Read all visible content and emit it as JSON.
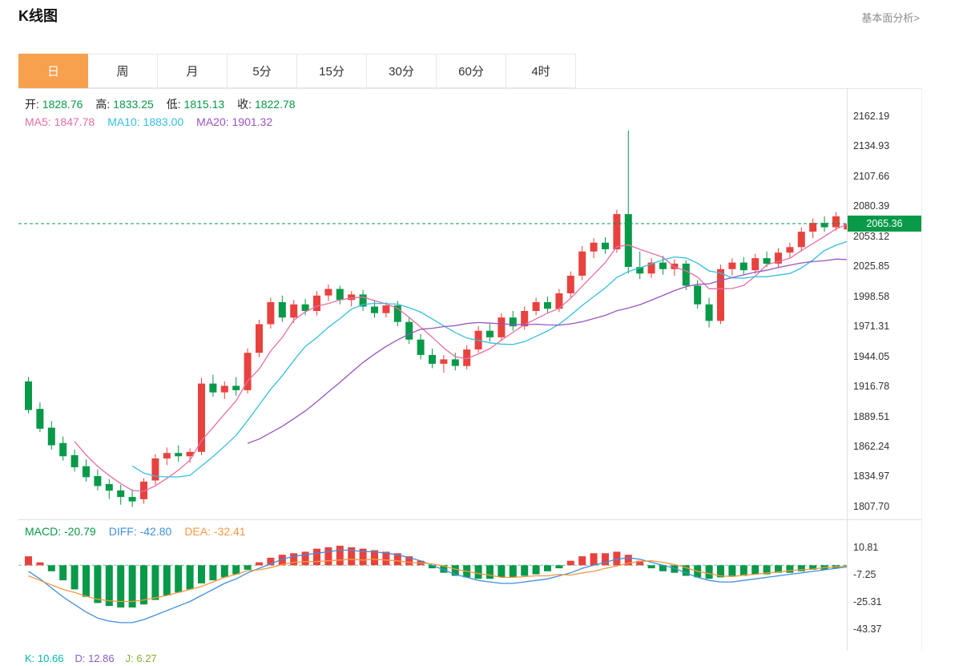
{
  "page": {
    "title": "K线图",
    "link": "基本面分析>"
  },
  "tabs": [
    {
      "id": "day",
      "label": "日",
      "active": true
    },
    {
      "id": "week",
      "label": "周",
      "active": false
    },
    {
      "id": "month",
      "label": "月",
      "active": false
    },
    {
      "id": "m5",
      "label": "5分",
      "active": false
    },
    {
      "id": "m15",
      "label": "15分",
      "active": false
    },
    {
      "id": "m30",
      "label": "30分",
      "active": false
    },
    {
      "id": "m60",
      "label": "60分",
      "active": false
    },
    {
      "id": "h4",
      "label": "4时",
      "active": false
    }
  ],
  "colors": {
    "up": "#e8423f",
    "down": "#089949",
    "accent": "#f7a04e",
    "ma5": "#e56fa4",
    "ma10": "#35bfdf",
    "ma20": "#9a55c0",
    "diff": "#3f8fdd",
    "dea": "#f6973f",
    "kdj_k": "#00b6b6",
    "kdj_d": "#8e5bc8",
    "kdj_j": "#7eb32f",
    "text": "#222",
    "grid": "#e0e0e0"
  },
  "ohlc_legend": [
    {
      "label": "开:",
      "value": "1828.76",
      "label_color": "#222",
      "value_color": "#089949"
    },
    {
      "label": "高:",
      "value": "1833.25",
      "label_color": "#222",
      "value_color": "#089949"
    },
    {
      "label": "低:",
      "value": "1815.13",
      "label_color": "#222",
      "value_color": "#089949"
    },
    {
      "label": "收:",
      "value": "1822.78",
      "label_color": "#222",
      "value_color": "#089949"
    }
  ],
  "ma_legend": [
    {
      "label": "MA5:",
      "value": "1847.78",
      "color": "#e56fa4"
    },
    {
      "label": "MA10:",
      "value": "1883.00",
      "color": "#35bfdf"
    },
    {
      "label": "MA20:",
      "value": "1901.32",
      "color": "#9a55c0"
    }
  ],
  "macd_legend": [
    {
      "label": "MACD:",
      "value": "-20.79",
      "color": "#089949"
    },
    {
      "label": "DIFF:",
      "value": "-42.80",
      "color": "#3f8fdd"
    },
    {
      "label": "DEA:",
      "value": "-32.41",
      "color": "#f6973f"
    }
  ],
  "kdj_legend": [
    {
      "label": "K:",
      "value": "10.66",
      "color": "#00b6b6"
    },
    {
      "label": "D:",
      "value": "12.86",
      "color": "#8e5bc8"
    },
    {
      "label": "J:",
      "value": "6.27",
      "color": "#7eb32f"
    }
  ],
  "price_axis": {
    "labels": [
      "2162.19",
      "2134.93",
      "2107.66",
      "2080.39",
      "2053.12",
      "2025.85",
      "1998.58",
      "1971.31",
      "1944.05",
      "1916.78",
      "1889.51",
      "1862.24",
      "1834.97",
      "1807.70"
    ],
    "last_price": "2065.36"
  },
  "macd_axis": {
    "labels": [
      "10.81",
      "-7.25",
      "-25.31",
      "-43.37"
    ]
  },
  "chart_data": {
    "type": "candlestick",
    "title": "K线图 (daily)",
    "legend_position": "top-left",
    "grid": false,
    "y_axis": {
      "max": 2162.19,
      "min": 1807.7,
      "tick_step": 27.27
    },
    "last_price": 2065.36,
    "candles_ohlc": [
      [
        1922,
        1926,
        1893,
        1896
      ],
      [
        1897,
        1903,
        1876,
        1879
      ],
      [
        1880,
        1886,
        1860,
        1864
      ],
      [
        1866,
        1872,
        1850,
        1854
      ],
      [
        1855,
        1860,
        1840,
        1844
      ],
      [
        1845,
        1851,
        1831,
        1835
      ],
      [
        1836,
        1842,
        1823,
        1827
      ],
      [
        1828.76,
        1833.25,
        1815.13,
        1822.78
      ],
      [
        1823,
        1828,
        1810,
        1817
      ],
      [
        1817,
        1824,
        1808,
        1813
      ],
      [
        1815,
        1834,
        1811,
        1831
      ],
      [
        1832,
        1856,
        1828,
        1852
      ],
      [
        1852,
        1862,
        1846,
        1857
      ],
      [
        1857,
        1864,
        1849,
        1854
      ],
      [
        1854,
        1861,
        1848,
        1858
      ],
      [
        1858,
        1925,
        1855,
        1920
      ],
      [
        1920,
        1928,
        1908,
        1912
      ],
      [
        1912,
        1922,
        1906,
        1918
      ],
      [
        1918,
        1926,
        1909,
        1914
      ],
      [
        1914,
        1952,
        1911,
        1948
      ],
      [
        1948,
        1978,
        1944,
        1974
      ],
      [
        1974,
        1998,
        1970,
        1994
      ],
      [
        1994,
        2000,
        1976,
        1980
      ],
      [
        1980,
        1996,
        1975,
        1992
      ],
      [
        1992,
        1997,
        1982,
        1986
      ],
      [
        1986,
        2004,
        1982,
        2000
      ],
      [
        2000,
        2010,
        1995,
        2006
      ],
      [
        2006,
        2009,
        1992,
        1996
      ],
      [
        1996,
        2004,
        1990,
        2001
      ],
      [
        2001,
        2005,
        1986,
        1990
      ],
      [
        1990,
        1996,
        1980,
        1984
      ],
      [
        1984,
        1994,
        1980,
        1991
      ],
      [
        1991,
        1995,
        1972,
        1976
      ],
      [
        1976,
        1980,
        1956,
        1960
      ],
      [
        1960,
        1965,
        1942,
        1946
      ],
      [
        1946,
        1952,
        1934,
        1938
      ],
      [
        1938,
        1946,
        1930,
        1942
      ],
      [
        1942,
        1948,
        1932,
        1936
      ],
      [
        1936,
        1955,
        1933,
        1951
      ],
      [
        1951,
        1972,
        1948,
        1968
      ],
      [
        1968,
        1974,
        1958,
        1962
      ],
      [
        1962,
        1984,
        1959,
        1980
      ],
      [
        1980,
        1986,
        1968,
        1972
      ],
      [
        1972,
        1990,
        1969,
        1986
      ],
      [
        1986,
        1998,
        1982,
        1994
      ],
      [
        1994,
        1999,
        1984,
        1988
      ],
      [
        1988,
        2006,
        1985,
        2002
      ],
      [
        2002,
        2022,
        1998,
        2018
      ],
      [
        2018,
        2045,
        2014,
        2040
      ],
      [
        2040,
        2052,
        2034,
        2048
      ],
      [
        2048,
        2053,
        2038,
        2042
      ],
      [
        2042,
        2078,
        2039,
        2074
      ],
      [
        2074,
        2150,
        2020,
        2026
      ],
      [
        2026,
        2040,
        2015,
        2020
      ],
      [
        2020,
        2034,
        2016,
        2030
      ],
      [
        2030,
        2036,
        2019,
        2024
      ],
      [
        2024,
        2033,
        2018,
        2029
      ],
      [
        2029,
        2032,
        2005,
        2009
      ],
      [
        2009,
        2014,
        1988,
        1992
      ],
      [
        1992,
        1998,
        1971,
        1977
      ],
      [
        1977,
        2028,
        1974,
        2024
      ],
      [
        2024,
        2034,
        2018,
        2030
      ],
      [
        2030,
        2035,
        2019,
        2023
      ],
      [
        2023,
        2038,
        2020,
        2034
      ],
      [
        2034,
        2040,
        2026,
        2029
      ],
      [
        2029,
        2043,
        2025,
        2039
      ],
      [
        2039,
        2048,
        2034,
        2044
      ],
      [
        2044,
        2062,
        2040,
        2058
      ],
      [
        2058,
        2070,
        2052,
        2066
      ],
      [
        2066,
        2072,
        2058,
        2062
      ],
      [
        2062,
        2076,
        2059,
        2072
      ],
      [
        2060,
        2068,
        2056,
        2065.36
      ]
    ],
    "ma_periods": [
      5,
      10,
      20
    ],
    "macd": {
      "axis": [
        10.81,
        -7.25,
        -25.31,
        -43.37
      ],
      "hist": [
        6,
        2,
        -4,
        -10,
        -16,
        -21,
        -25,
        -27,
        -28,
        -28,
        -26,
        -23,
        -20,
        -18,
        -16,
        -12,
        -10,
        -8,
        -6,
        -3,
        2,
        5,
        7,
        8,
        9,
        11,
        12,
        13,
        12,
        11,
        10,
        9,
        8,
        6,
        3,
        -2,
        -5,
        -7,
        -8,
        -9,
        -9,
        -8,
        -8,
        -7,
        -6,
        -4,
        -2,
        3,
        6,
        8,
        8,
        9,
        7,
        3,
        -2,
        -4,
        -5,
        -7,
        -8,
        -9,
        -8,
        -7,
        -7,
        -6,
        -6,
        -5,
        -5,
        -4,
        -3,
        -3,
        -2,
        -1
      ],
      "diff": [
        -4,
        -9,
        -15,
        -21,
        -26,
        -31,
        -35,
        -37,
        -38,
        -38,
        -36,
        -33,
        -30,
        -27,
        -24,
        -20,
        -16,
        -12,
        -9,
        -5,
        -2,
        1,
        4,
        6,
        7,
        8,
        9,
        10,
        10,
        9,
        9,
        8,
        7,
        5,
        3,
        0,
        -3,
        -6,
        -8,
        -10,
        -11,
        -12,
        -12,
        -11,
        -10,
        -9,
        -7,
        -5,
        -2,
        0,
        2,
        4,
        5,
        4,
        2,
        0,
        -2,
        -5,
        -8,
        -10,
        -11,
        -11,
        -10,
        -9,
        -8,
        -7,
        -6,
        -5,
        -4,
        -3,
        -2,
        -1
      ],
      "dea": [
        -7,
        -10,
        -13,
        -16,
        -18,
        -20.5,
        -22.5,
        -23.5,
        -24,
        -24,
        -23,
        -21.5,
        -20,
        -18,
        -16,
        -14,
        -11,
        -8,
        -6,
        -3.5,
        -3,
        -1.5,
        0.5,
        2,
        2.5,
        2.5,
        3,
        3.5,
        4,
        3.5,
        4,
        3.5,
        3,
        2,
        1.5,
        1,
        -0.5,
        -2.5,
        -4,
        -5.5,
        -6.5,
        -8,
        -8,
        -7.5,
        -7,
        -7,
        -6,
        -6.5,
        -5,
        -4,
        -2,
        -0.5,
        1.5,
        2.5,
        3,
        2,
        0.5,
        -1.5,
        -4,
        -5.5,
        -7,
        -7.5,
        -6.5,
        -6,
        -5,
        -4.5,
        -3.5,
        -3,
        -2.5,
        -1.5,
        -1,
        -0.5
      ]
    }
  }
}
